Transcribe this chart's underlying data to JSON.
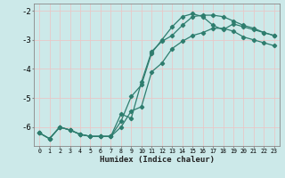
{
  "xlabel": "Humidex (Indice chaleur)",
  "ylabel": "",
  "xlim": [
    -0.5,
    23.5
  ],
  "ylim": [
    -6.65,
    -1.75
  ],
  "yticks": [
    -6,
    -5,
    -4,
    -3,
    -2
  ],
  "xticks": [
    0,
    1,
    2,
    3,
    4,
    5,
    6,
    7,
    8,
    9,
    10,
    11,
    12,
    13,
    14,
    15,
    16,
    17,
    18,
    19,
    20,
    21,
    22,
    23
  ],
  "bg_color": "#cce9e9",
  "grid_color": "#e8c8c8",
  "line_color": "#2e7d6e",
  "curve1_x": [
    0,
    1,
    2,
    3,
    4,
    5,
    6,
    7,
    8,
    9,
    10,
    11,
    12,
    13,
    14,
    15,
    16,
    17,
    18,
    19,
    20,
    21,
    22,
    23
  ],
  "curve1_y": [
    -6.2,
    -6.4,
    -6.0,
    -6.1,
    -6.25,
    -6.32,
    -6.32,
    -6.32,
    -6.0,
    -5.45,
    -5.3,
    -4.1,
    -3.8,
    -3.3,
    -3.05,
    -2.85,
    -2.75,
    -2.6,
    -2.6,
    -2.7,
    -2.9,
    -3.0,
    -3.1,
    -3.2
  ],
  "curve2_x": [
    0,
    1,
    2,
    3,
    4,
    5,
    6,
    7,
    8,
    9,
    10,
    11,
    12,
    13,
    14,
    15,
    16,
    17,
    18,
    19,
    20,
    21,
    22,
    23
  ],
  "curve2_y": [
    -6.2,
    -6.4,
    -6.0,
    -6.1,
    -6.25,
    -6.32,
    -6.32,
    -6.32,
    -5.8,
    -4.95,
    -4.55,
    -3.45,
    -3.0,
    -2.55,
    -2.2,
    -2.1,
    -2.2,
    -2.5,
    -2.65,
    -2.45,
    -2.55,
    -2.65,
    -2.75,
    -2.85
  ],
  "curve3_x": [
    0,
    1,
    2,
    3,
    4,
    5,
    6,
    7,
    8,
    9,
    10,
    11,
    12,
    13,
    14,
    15,
    16,
    17,
    18,
    19,
    20,
    21,
    22,
    23
  ],
  "curve3_y": [
    -6.2,
    -6.4,
    -6.0,
    -6.1,
    -6.25,
    -6.32,
    -6.32,
    -6.32,
    -5.55,
    -5.7,
    -4.45,
    -3.4,
    -3.05,
    -2.85,
    -2.5,
    -2.2,
    -2.15,
    -2.15,
    -2.2,
    -2.35,
    -2.5,
    -2.6,
    -2.75,
    -2.85
  ]
}
